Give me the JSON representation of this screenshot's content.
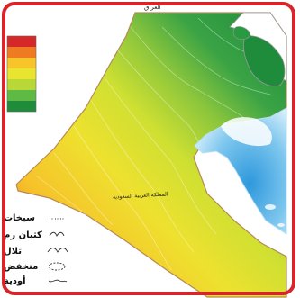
{
  "labels": {
    "border_top": "العراق",
    "border_bottom": "المملكة العربية السعودية"
  },
  "legend": [
    {
      "label": "سبخات",
      "icon": "sabkha-icon"
    },
    {
      "label": "كثبان رم",
      "icon": "dune-icon"
    },
    {
      "label": "تلال",
      "icon": "hill-icon"
    },
    {
      "label": "منخفض",
      "icon": "depression-icon"
    },
    {
      "label": "أودية",
      "icon": "wadi-icon"
    }
  ],
  "elevation_scale_colors": [
    "#d62828",
    "#ee7a22",
    "#f7c52a",
    "#e8e430",
    "#b9d838",
    "#5fba45",
    "#1f8c3b"
  ],
  "colors": {
    "frame": "#d8252a",
    "water": "#8fd0f0",
    "water_deep": "#3aa6e0",
    "island": "#1f8c3b"
  }
}
